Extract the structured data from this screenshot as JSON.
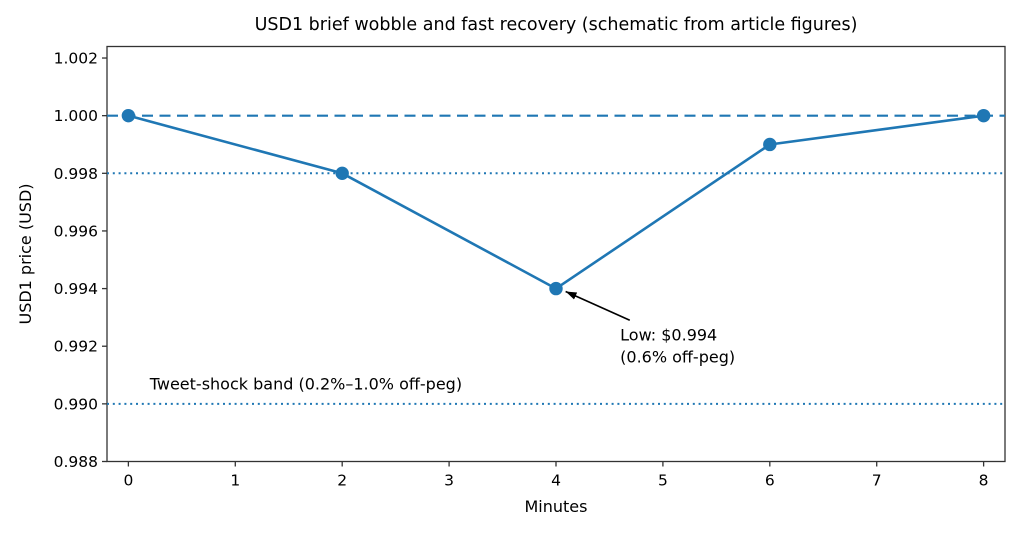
{
  "chart_data": {
    "type": "line",
    "title": "USD1 brief wobble and fast recovery (schematic from article figures)",
    "xlabel": "Minutes",
    "ylabel": "USD1 price (USD)",
    "x": [
      0,
      2,
      4,
      6,
      8
    ],
    "series": [
      {
        "name": "USD1 price",
        "values": [
          1.0,
          0.998,
          0.994,
          0.999,
          1.0
        ]
      }
    ],
    "xlim": [
      -0.2,
      8.2
    ],
    "ylim": [
      0.988,
      1.0024
    ],
    "xticks": [
      0,
      1,
      2,
      3,
      4,
      5,
      6,
      7,
      8
    ],
    "yticks": [
      0.988,
      0.99,
      0.992,
      0.994,
      0.996,
      0.998,
      1.0,
      1.002
    ],
    "ytick_decimals": 3,
    "grid": false,
    "legend_position": "none",
    "line_color": "#1f77b4",
    "marker_color": "#1f77b4",
    "axis_color": "#333333",
    "text_color": "#000000",
    "background_color": "#ffffff",
    "reference_lines": [
      {
        "y": 1.0,
        "style": "dashed",
        "color": "#1f77b4"
      },
      {
        "y": 0.998,
        "style": "dotted",
        "color": "#1f77b4"
      },
      {
        "y": 0.99,
        "style": "dotted",
        "color": "#1f77b4"
      }
    ],
    "annotation": {
      "text_line1": "Low: $0.994",
      "text_line2": "(0.6% off-peg)",
      "point_x": 4,
      "point_y": 0.994,
      "text_x": 4.6,
      "text_y": 0.9922,
      "arrow_tail_x": 4.69,
      "arrow_tail_y": 0.9929,
      "arrow_tip_x": 4.09,
      "arrow_tip_y": 0.9939,
      "arrow_color": "#000000"
    },
    "band_label": {
      "text": "Tweet-shock band (0.2%–1.0% off-peg)",
      "x": 0.2,
      "y": 0.9905
    }
  }
}
